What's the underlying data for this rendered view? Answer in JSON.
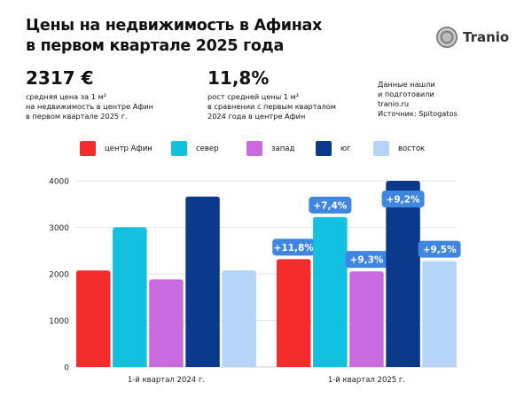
{
  "header": {
    "title_line1": "Цены на недвижимость в Афинах",
    "title_line2": "в первом квартале 2025 года",
    "logo_text": "Tranio"
  },
  "stats": [
    {
      "value": "2317 €",
      "lines": [
        "средняя цена за 1 м²",
        "на недвижимость в центре Афин",
        "в первом квартале 2025 г."
      ]
    },
    {
      "value": "11,8%",
      "lines": [
        "рост средней цены 1 м²",
        "в сравнении с первым кварталом",
        "2024 года в центре Афин"
      ]
    }
  ],
  "source": {
    "lines": [
      "Данные нашли",
      "и подготовили",
      "tranio.ru",
      "Источник: Spitogatos"
    ]
  },
  "chart_data": {
    "type": "bar",
    "categories": [
      "1-й квартал 2024 г.",
      "1-й квартал 2025 г."
    ],
    "series": [
      {
        "name": "центр Афин",
        "color": "#f42c2c",
        "values": [
          2073,
          2317
        ],
        "labels": [
          "",
          "+11,8%"
        ]
      },
      {
        "name": "север",
        "color": "#12c0df",
        "values": [
          3003,
          3222
        ],
        "labels": [
          "",
          "+7,4%"
        ]
      },
      {
        "name": "запад",
        "color": "#c96ae0",
        "values": [
          1880,
          2054
        ],
        "labels": [
          "",
          "+9,3%"
        ]
      },
      {
        "name": "юг",
        "color": "#0b3a8c",
        "values": [
          3663,
          4000
        ],
        "labels": [
          "",
          "+9,2%"
        ]
      },
      {
        "name": "восток",
        "color": "#b4d4f7",
        "values": [
          2076,
          2275
        ],
        "labels": [
          "",
          "+9,5%"
        ]
      }
    ],
    "ylim": [
      0,
      4000
    ],
    "yticks": [
      "0",
      "1000",
      "2000",
      "3000",
      "4000"
    ],
    "grid": true,
    "legend": "top",
    "label_color": "#3f86e0"
  }
}
